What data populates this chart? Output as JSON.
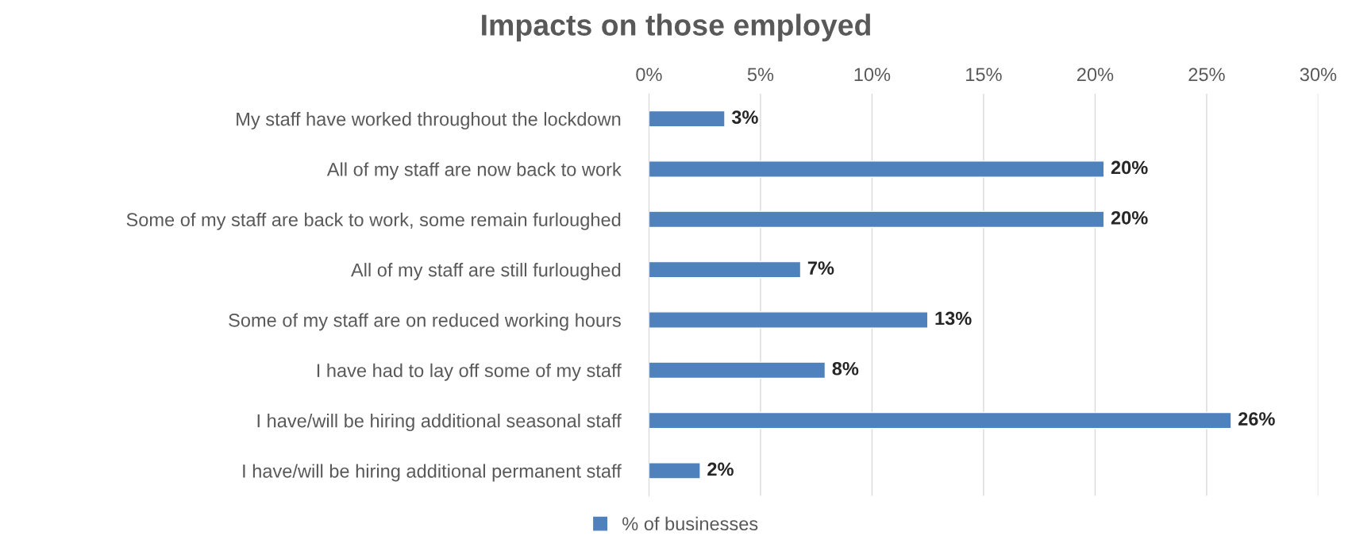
{
  "chart_data": {
    "type": "bar",
    "orientation": "horizontal",
    "title": "Impacts on those employed",
    "categories": [
      "My staff have worked throughout the lockdown",
      "All of my staff are now back to work",
      "Some of my staff are back to work, some remain furloughed",
      "All of my staff are still furloughed",
      "Some of my staff are on reduced working hours",
      "I have had to lay off some of my staff",
      "I have/will be hiring additional seasonal staff",
      "I have/will be hiring additional permanent staff"
    ],
    "series": [
      {
        "name": "% of businesses",
        "color": "#4f81bd",
        "values": [
          3.4,
          20.4,
          20.4,
          6.8,
          12.5,
          7.9,
          26.1,
          2.3
        ],
        "value_labels": [
          "3%",
          "20%",
          "20%",
          "7%",
          "13%",
          "8%",
          "26%",
          "2%"
        ]
      }
    ],
    "xlim": [
      0,
      30
    ],
    "xticks": [
      {
        "value": 0,
        "label": "0%"
      },
      {
        "value": 5,
        "label": "5%"
      },
      {
        "value": 10,
        "label": "10%"
      },
      {
        "value": 15,
        "label": "15%"
      },
      {
        "value": 20,
        "label": "20%"
      },
      {
        "value": 25,
        "label": "25%"
      },
      {
        "value": 30,
        "label": "30%"
      }
    ],
    "grid": "x",
    "legend": "bottom"
  }
}
